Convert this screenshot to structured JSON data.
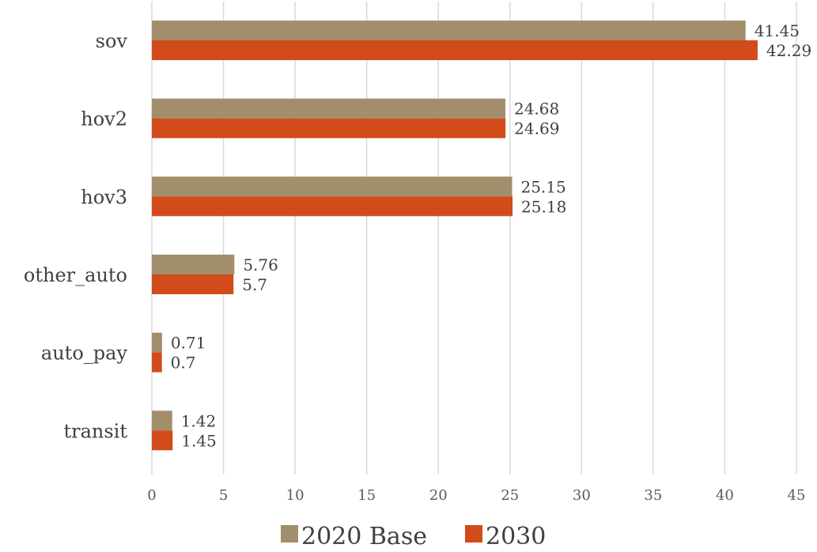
{
  "chart_data": {
    "type": "bar",
    "orientation": "horizontal",
    "categories": [
      "sov",
      "hov2",
      "hov3",
      "other_auto",
      "auto_pay",
      "transit"
    ],
    "series": [
      {
        "name": "2020 Base",
        "color": "#a38e6c",
        "values": [
          41.45,
          24.68,
          25.15,
          5.76,
          0.71,
          1.42
        ]
      },
      {
        "name": "2030",
        "color": "#d24b1a",
        "values": [
          42.29,
          24.69,
          25.18,
          5.7,
          0.7,
          1.45
        ]
      }
    ],
    "xlim": [
      0,
      45
    ],
    "xticks": [
      0,
      5,
      10,
      15,
      20,
      25,
      30,
      35,
      40,
      45
    ],
    "grid": true,
    "legend": "bottom",
    "title": "",
    "xlabel": "",
    "ylabel": ""
  }
}
